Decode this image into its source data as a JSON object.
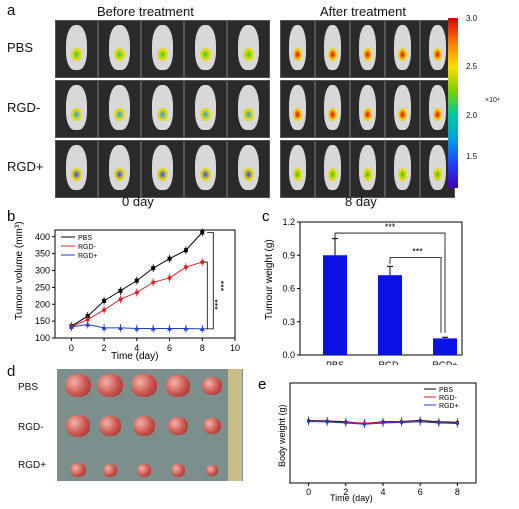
{
  "panel_a": {
    "label": "a",
    "before_heading": "Before treatment",
    "after_heading": "After treatment",
    "rows": [
      "PBS",
      "RGD-",
      "RGD+"
    ],
    "day_before": "0 day",
    "day_after": "8 day",
    "colorbar": {
      "ticks": [
        "3.0",
        "2.5",
        "2.0",
        "1.5"
      ],
      "exponent": "×10⁴"
    }
  },
  "panel_d": {
    "label": "d",
    "rows": [
      "PBS",
      "RGD-",
      "RGD+"
    ]
  },
  "colors": {
    "pbs": "#000000",
    "rgd_minus": "#d62728",
    "rgd_plus": "#1f3fcf",
    "bar": "#0a12e6"
  },
  "chart_data": [
    {
      "panel": "b",
      "type": "line",
      "xlabel": "Time (day)",
      "ylabel": "Tumour volume (mm³)",
      "xlim": [
        -1,
        10
      ],
      "ylim": [
        100,
        420
      ],
      "xticks": [
        0,
        2,
        4,
        6,
        8,
        10
      ],
      "yticks": [
        100,
        150,
        200,
        250,
        300,
        350,
        400
      ],
      "x": [
        0,
        1,
        2,
        3,
        4,
        5,
        6,
        7,
        8
      ],
      "series": [
        {
          "name": "PBS",
          "values": [
            135,
            165,
            210,
            240,
            270,
            307,
            335,
            360,
            413
          ]
        },
        {
          "name": "RGD-",
          "values": [
            133,
            155,
            183,
            215,
            235,
            265,
            278,
            310,
            325
          ]
        },
        {
          "name": "RGD+",
          "values": [
            133,
            140,
            130,
            130,
            128,
            128,
            128,
            128,
            127
          ]
        }
      ],
      "annotations": [
        "***",
        "***"
      ],
      "legend": "top-left"
    },
    {
      "panel": "c",
      "type": "bar",
      "ylabel": "Tumour weight (g)",
      "categories": [
        "PBS",
        "RGD-",
        "RGD+"
      ],
      "values": [
        0.9,
        0.72,
        0.15
      ],
      "errors": [
        0.15,
        0.08,
        0.01
      ],
      "ylim": [
        0,
        1.2
      ],
      "yticks": [
        0.0,
        0.3,
        0.6,
        0.9,
        1.2
      ],
      "annotations": [
        "***",
        "***"
      ]
    },
    {
      "panel": "e",
      "type": "line",
      "xlabel": "Time (day)",
      "ylabel": "Body weight (g)",
      "xlim": [
        -1,
        9
      ],
      "ylim": [
        0,
        40
      ],
      "xticks": [
        0,
        2,
        4,
        6,
        8
      ],
      "x": [
        0,
        1,
        2,
        3,
        4,
        5,
        6,
        7,
        8
      ],
      "series": [
        {
          "name": "PBS",
          "values": [
            25,
            24.8,
            24.5,
            23.8,
            24.5,
            24.6,
            25,
            24.5,
            24.3
          ]
        },
        {
          "name": "RGD-",
          "values": [
            24.8,
            24.5,
            24.2,
            24,
            24.2,
            24.4,
            24.6,
            24.2,
            24
          ]
        },
        {
          "name": "RGD+",
          "values": [
            24.6,
            24.4,
            24,
            23.5,
            24,
            24.2,
            24.5,
            24,
            23.8
          ]
        }
      ],
      "legend": "top-right"
    }
  ]
}
